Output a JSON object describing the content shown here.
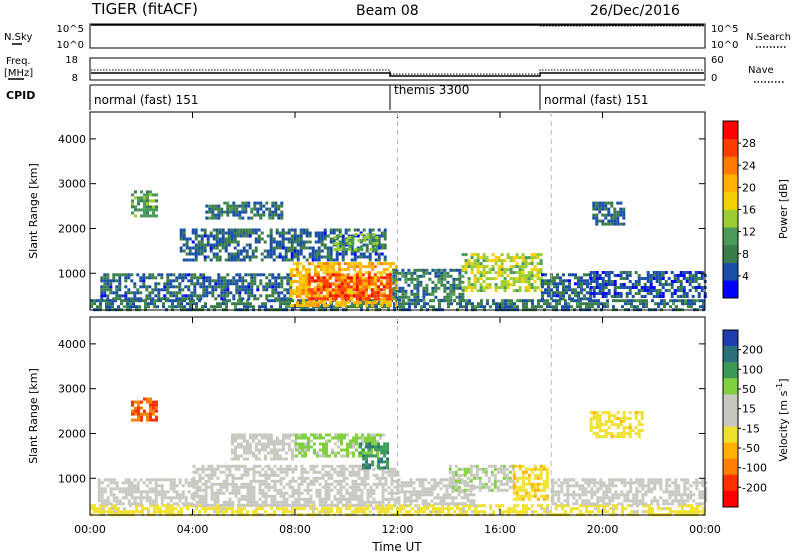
{
  "header": {
    "station": "TIGER (fitACF)",
    "beam": "Beam 08",
    "date": "26/Dec/2016"
  },
  "time_axis": {
    "label": "Time UT",
    "ticks": [
      "00:00",
      "04:00",
      "08:00",
      "12:00",
      "16:00",
      "20:00",
      "00:00"
    ],
    "range_hours": [
      0,
      24
    ]
  },
  "noise_panel": {
    "left_label": "N.Sky",
    "right_label": "N.Search",
    "left_ticks": [
      "10^5",
      "10^0"
    ],
    "right_ticks": [
      "10^5",
      "10^0"
    ]
  },
  "freq_panel": {
    "left_label_line1": "Freq.",
    "left_label_line2": "[MHz]",
    "left_ticks": [
      "18",
      "8"
    ],
    "right_label": "Nave",
    "right_ticks": [
      "60",
      "0"
    ],
    "freq_line_color": "#000000"
  },
  "cpid": {
    "label": "CPID",
    "segments": [
      {
        "label": "normal (fast) 151",
        "start_h": 0,
        "end_h": 12
      },
      {
        "label": "themis 3300",
        "start_h": 12,
        "end_h": 18
      },
      {
        "label": "normal (fast) 151",
        "start_h": 18,
        "end_h": 24
      }
    ]
  },
  "range_axis": {
    "label": "Slant Range [km]",
    "ticks": [
      "4000",
      "3000",
      "2000",
      "1000"
    ],
    "tick_values": [
      4000,
      3000,
      2000,
      1000
    ],
    "range_km": [
      180,
      4600
    ]
  },
  "power_scale": {
    "title": "Power [dB]",
    "ticks": [
      "28",
      "24",
      "20",
      "16",
      "12",
      "8",
      "4"
    ],
    "colors": [
      "#0000ff",
      "#1a4fa8",
      "#3b7d4a",
      "#4a9a5a",
      "#9acd32",
      "#f5d000",
      "#ffb000",
      "#ff7a00",
      "#ff3c00",
      "#ff0000"
    ]
  },
  "velocity_scale": {
    "title_prefix": "Velocity [m s",
    "title_exp": "-1",
    "title_suffix": "]",
    "ticks": [
      "200",
      "100",
      "50",
      "15",
      "-15",
      "-50",
      "-100",
      "-200"
    ],
    "colors": [
      "#1f3fb0",
      "#2a6f7a",
      "#3a9a55",
      "#80d040",
      "#c8c8c0",
      "#c8c8c0",
      "#f0e030",
      "#ffb000",
      "#ff8000",
      "#ff3000",
      "#ff0000"
    ]
  },
  "chart_data": [
    {
      "type": "heatmap",
      "title": "Power [dB]",
      "x_label": "Time UT",
      "y_label": "Slant Range [km]",
      "x_range_hours": [
        0,
        24
      ],
      "y_range_km": [
        180,
        4600
      ],
      "value_range": [
        0,
        32
      ],
      "regions": [
        {
          "t0": 0.0,
          "t1": 24.0,
          "r0": 180,
          "r1": 420,
          "value": 7
        },
        {
          "t0": 0.4,
          "t1": 7.8,
          "r0": 400,
          "r1": 1000,
          "value": 6
        },
        {
          "t0": 7.8,
          "t1": 12.0,
          "r0": 300,
          "r1": 1250,
          "value": 20
        },
        {
          "t0": 8.5,
          "t1": 11.8,
          "r0": 400,
          "r1": 1000,
          "value": 27
        },
        {
          "t0": 11.8,
          "t1": 14.5,
          "r0": 400,
          "r1": 1100,
          "value": 8
        },
        {
          "t0": 14.5,
          "t1": 17.6,
          "r0": 600,
          "r1": 1450,
          "value": 15
        },
        {
          "t0": 17.6,
          "t1": 19.5,
          "r0": 400,
          "r1": 1000,
          "value": 6
        },
        {
          "t0": 19.5,
          "t1": 24.0,
          "r0": 450,
          "r1": 1050,
          "value": 5
        },
        {
          "t0": 3.5,
          "t1": 11.5,
          "r0": 1300,
          "r1": 2000,
          "value": 6
        },
        {
          "t0": 9.5,
          "t1": 11.2,
          "r0": 1500,
          "r1": 1900,
          "value": 13
        },
        {
          "t0": 1.6,
          "t1": 2.6,
          "r0": 2300,
          "r1": 2850,
          "value": 11
        },
        {
          "t0": 4.5,
          "t1": 7.5,
          "r0": 2200,
          "r1": 2600,
          "value": 7
        },
        {
          "t0": 19.6,
          "t1": 20.8,
          "r0": 2100,
          "r1": 2600,
          "value": 6
        }
      ]
    },
    {
      "type": "heatmap",
      "title": "Velocity [m s-1]",
      "x_label": "Time UT",
      "y_label": "Slant Range [km]",
      "x_range_hours": [
        0,
        24
      ],
      "y_range_km": [
        180,
        4600
      ],
      "value_range": [
        -250,
        250
      ],
      "regions": [
        {
          "t0": 0.0,
          "t1": 24.0,
          "r0": 180,
          "r1": 420,
          "value": -40
        },
        {
          "t0": 0.3,
          "t1": 4.0,
          "r0": 400,
          "r1": 1000,
          "value": 0
        },
        {
          "t0": 4.0,
          "t1": 12.0,
          "r0": 400,
          "r1": 1300,
          "value": 0
        },
        {
          "t0": 12.0,
          "t1": 15.0,
          "r0": 400,
          "r1": 1000,
          "value": 0
        },
        {
          "t0": 14.0,
          "t1": 16.5,
          "r0": 700,
          "r1": 1300,
          "value": 60
        },
        {
          "t0": 16.5,
          "t1": 17.8,
          "r0": 500,
          "r1": 1300,
          "value": -60
        },
        {
          "t0": 18.0,
          "t1": 24.0,
          "r0": 400,
          "r1": 1000,
          "value": 0
        },
        {
          "t0": 5.5,
          "t1": 8.0,
          "r0": 1400,
          "r1": 2000,
          "value": 0
        },
        {
          "t0": 8.0,
          "t1": 11.5,
          "r0": 1500,
          "r1": 2000,
          "value": 80
        },
        {
          "t0": 1.6,
          "t1": 2.6,
          "r0": 2300,
          "r1": 2800,
          "value": -160
        },
        {
          "t0": 10.5,
          "t1": 11.6,
          "r0": 1200,
          "r1": 1800,
          "value": 150
        },
        {
          "t0": 19.5,
          "t1": 21.5,
          "r0": 1900,
          "r1": 2500,
          "value": -50
        }
      ]
    }
  ]
}
